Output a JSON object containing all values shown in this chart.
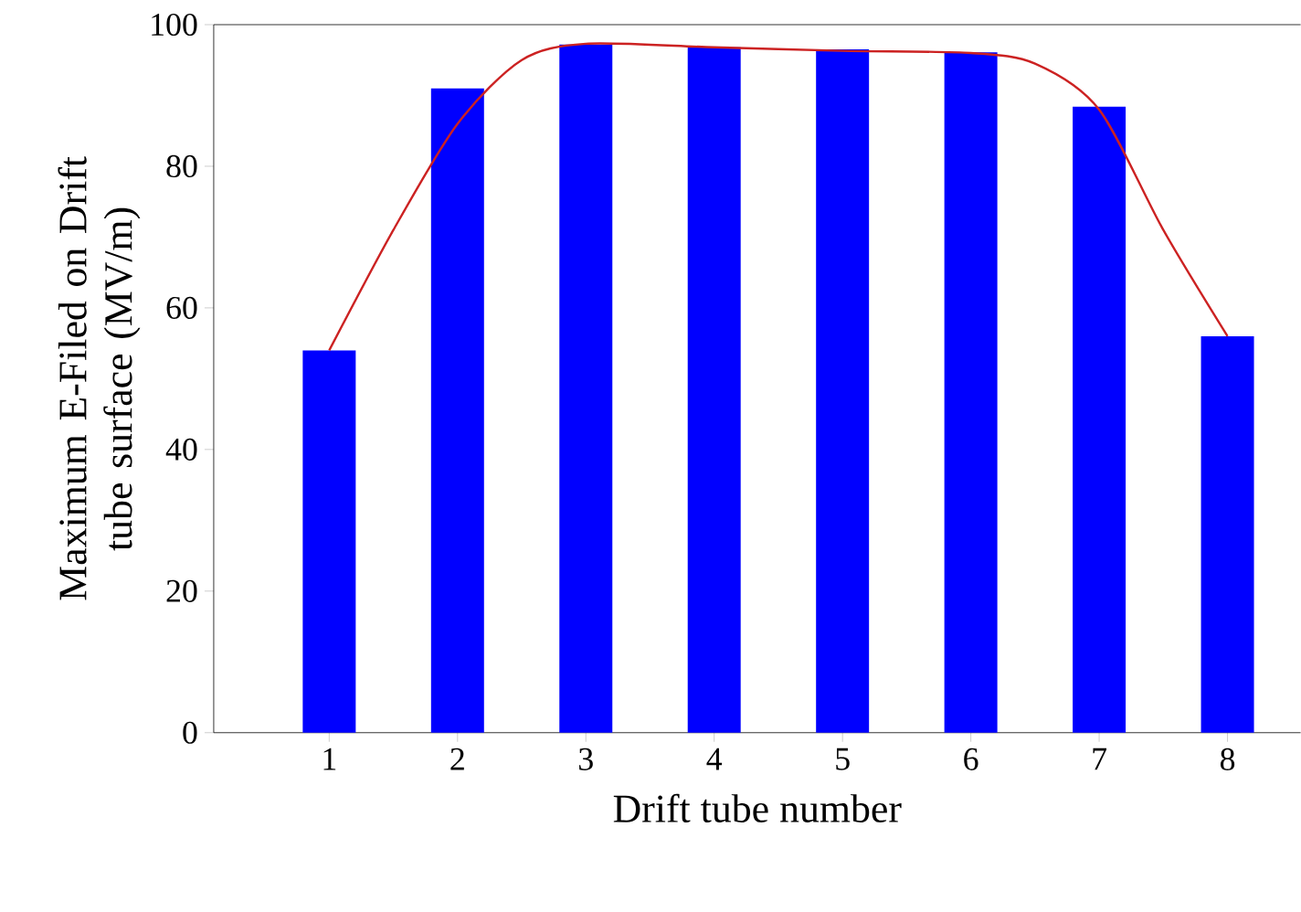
{
  "chart_data": {
    "type": "bar",
    "xlabel": "Drift tube number",
    "ylabel": "Maximum E-Filed on Drift tube surface (MV/m)",
    "x": [
      1,
      2,
      3,
      4,
      5,
      6,
      7,
      8
    ],
    "series": [
      {
        "color": "#0000ff",
        "values": [
          54,
          91,
          97.2,
          96.8,
          96.5,
          96.1,
          88.4,
          56
        ]
      },
      {
        "type": "line",
        "color": "#cc2222",
        "x": [
          1,
          1.5,
          2,
          2.5,
          3,
          4,
          5,
          6,
          6.5,
          7,
          7.5,
          8
        ],
        "values": [
          54,
          71,
          86,
          95,
          97.3,
          96.8,
          96.3,
          96,
          94.5,
          88,
          71,
          56
        ]
      }
    ],
    "xlim": [
      0.1,
      8.57
    ],
    "ylim": [
      0,
      100
    ],
    "xticks": [
      1,
      2,
      3,
      4,
      5,
      6,
      7,
      8
    ],
    "yticks": [
      0,
      20,
      40,
      60,
      80,
      100
    ],
    "grid": false,
    "marker": "none",
    "line_style": "solid"
  }
}
